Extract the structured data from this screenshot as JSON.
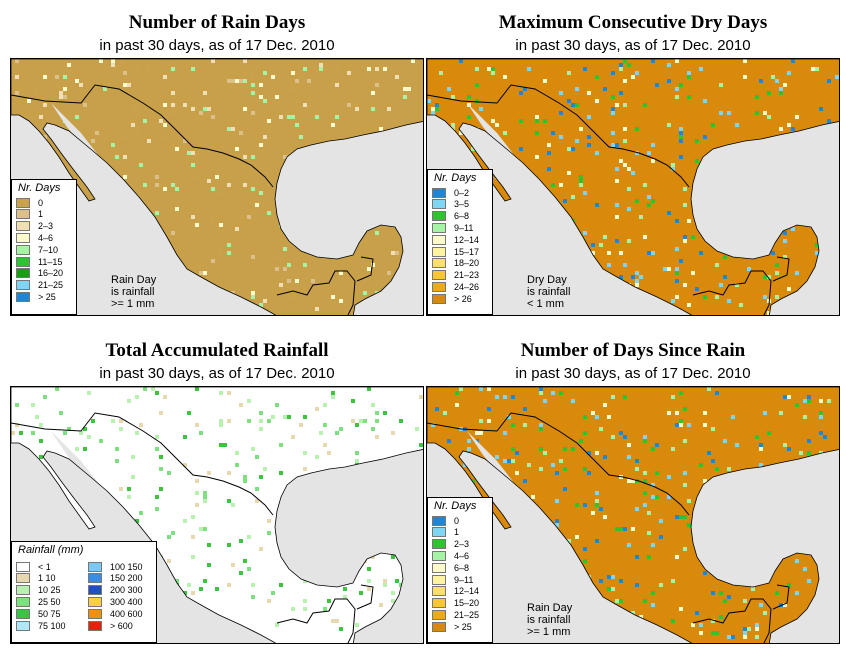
{
  "panels": [
    {
      "title": "Number of Rain Days",
      "subtitle": "in past 30 days, as of  17 Dec. 2010",
      "legend_title": "Nr. Days",
      "note": [
        "Rain Day",
        "is rainfall",
        ">= 1 mm"
      ],
      "base_color": "#c8a04a",
      "items": [
        {
          "label": "0",
          "color": "#c9a24b"
        },
        {
          "label": "1",
          "color": "#dcc08a"
        },
        {
          "label": "2–3",
          "color": "#f0deb4"
        },
        {
          "label": "4–6",
          "color": "#fbfac8"
        },
        {
          "label": "7–10",
          "color": "#a6f3a6"
        },
        {
          "label": "11–15",
          "color": "#2fc42f"
        },
        {
          "label": "16–20",
          "color": "#1a9e1a"
        },
        {
          "label": "21–25",
          "color": "#7fd6f4"
        },
        {
          "label": "> 25",
          "color": "#1f86d6"
        }
      ]
    },
    {
      "title": "Maximum Consecutive Dry Days",
      "subtitle": "in past 30 days, as of  17 Dec. 2010",
      "legend_title": "Nr. Days",
      "note": [
        "Dry Day",
        "is rainfall",
        "< 1 mm"
      ],
      "base_color": "#d98a0a",
      "items": [
        {
          "label": "0–2",
          "color": "#1f86d6"
        },
        {
          "label": "3–5",
          "color": "#7fd6f4"
        },
        {
          "label": "6–8",
          "color": "#2fc42f"
        },
        {
          "label": "9–11",
          "color": "#a6f3a6"
        },
        {
          "label": "12–14",
          "color": "#fbfac8"
        },
        {
          "label": "15–17",
          "color": "#fff3a0"
        },
        {
          "label": "18–20",
          "color": "#ffe066"
        },
        {
          "label": "21–23",
          "color": "#fcc830"
        },
        {
          "label": "24–26",
          "color": "#f0a818"
        },
        {
          "label": "> 26",
          "color": "#d98a0a"
        }
      ]
    },
    {
      "title": "Total Accumulated Rainfall",
      "subtitle": "in past 30 days, as of  17 Dec. 2010",
      "legend_title": "Rainfall (mm)",
      "base_color": "#ffffff",
      "items_left": [
        {
          "label": "< 1",
          "color": "#ffffff"
        },
        {
          "label": "1    10",
          "color": "#e8d8b0"
        },
        {
          "label": "10    25",
          "color": "#b8f0b0"
        },
        {
          "label": "25    50",
          "color": "#7ee07e"
        },
        {
          "label": "50    75",
          "color": "#3fc43f"
        },
        {
          "label": "75   100",
          "color": "#b0e8f8"
        }
      ],
      "items_right": [
        {
          "label": "100   150",
          "color": "#7cc8f4"
        },
        {
          "label": "150   200",
          "color": "#3d8ce0"
        },
        {
          "label": "200   300",
          "color": "#1f4fc0"
        },
        {
          "label": "300   400",
          "color": "#fcd040"
        },
        {
          "label": "400   600",
          "color": "#f09010"
        },
        {
          "label": "> 600",
          "color": "#e82010"
        }
      ]
    },
    {
      "title": "Number of Days Since Rain",
      "subtitle": "in past 30 days, as of  17 Dec. 2010",
      "legend_title": "Nr. Days",
      "note": [
        "Rain Day",
        "is rainfall",
        ">= 1 mm"
      ],
      "base_color": "#d98a0a",
      "items": [
        {
          "label": "0",
          "color": "#1f86d6"
        },
        {
          "label": "1",
          "color": "#7fd6f4"
        },
        {
          "label": "2–3",
          "color": "#2fc42f"
        },
        {
          "label": "4–6",
          "color": "#a6f3a6"
        },
        {
          "label": "6–8",
          "color": "#fbfac8"
        },
        {
          "label": "9–11",
          "color": "#fff3a0"
        },
        {
          "label": "12–14",
          "color": "#ffe066"
        },
        {
          "label": "15–20",
          "color": "#fcc830"
        },
        {
          "label": "21–25",
          "color": "#f0a818"
        },
        {
          "label": "> 25",
          "color": "#d98a0a"
        }
      ]
    }
  ],
  "colors": {
    "ocean": "#e4e4e4",
    "border": "#000000"
  }
}
